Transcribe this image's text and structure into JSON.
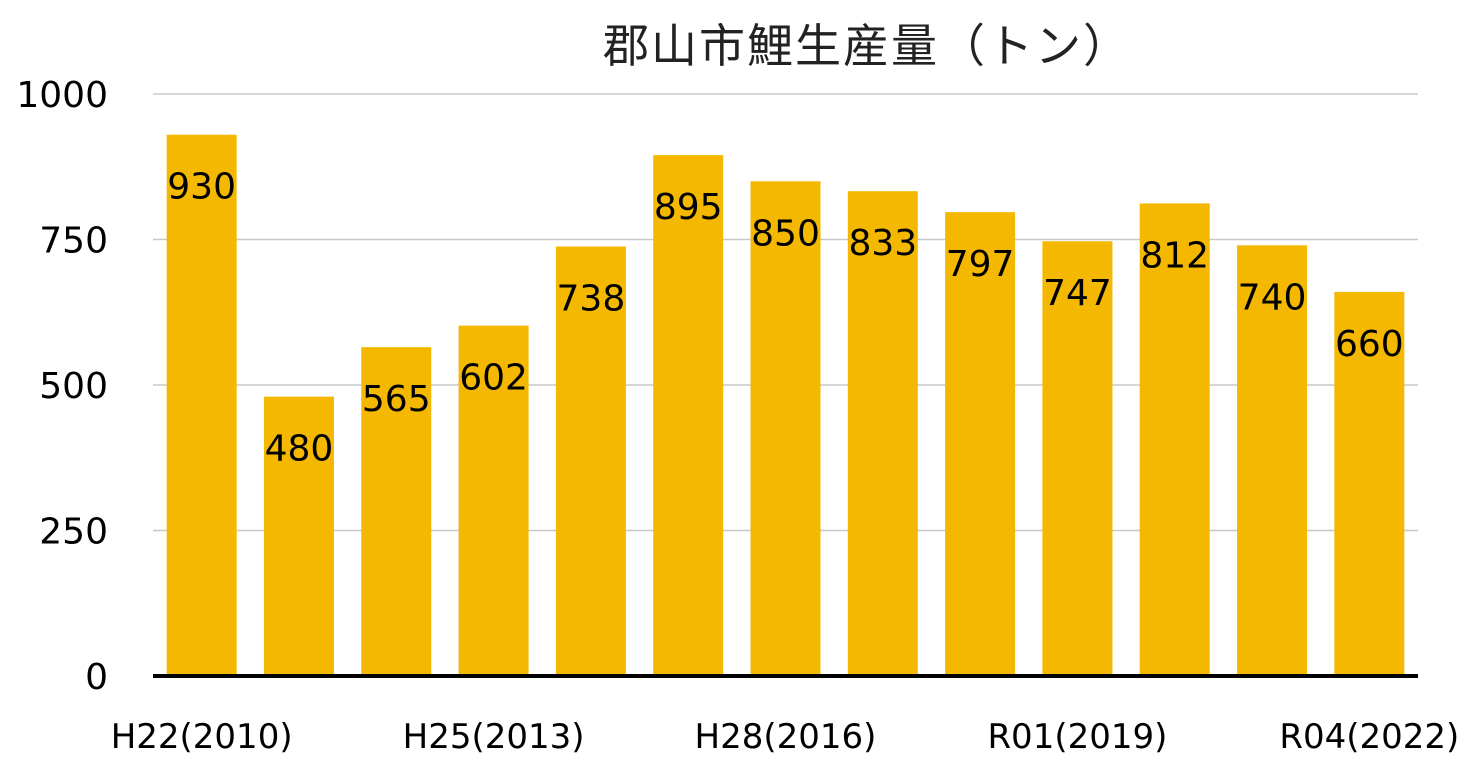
{
  "chart_data": {
    "type": "bar",
    "title": "郡山市鯉生産量（トン）",
    "xlabel": "",
    "ylabel": "",
    "categories": [
      "H22(2010)",
      "",
      "",
      "H25(2013)",
      "",
      "",
      "H28(2016)",
      "",
      "",
      "R01(2019)",
      "",
      "",
      "R04(2022)"
    ],
    "values": [
      930,
      480,
      565,
      602,
      738,
      895,
      850,
      833,
      797,
      747,
      812,
      740,
      660
    ],
    "ylim": [
      0,
      1000
    ],
    "yticks": [
      0,
      250,
      500,
      750,
      1000
    ],
    "grid": true,
    "legend": "none",
    "bar_color": "#F5B800",
    "grid_color": "#C8C8C8",
    "axis_color": "#000000",
    "text_color": "#000000"
  }
}
